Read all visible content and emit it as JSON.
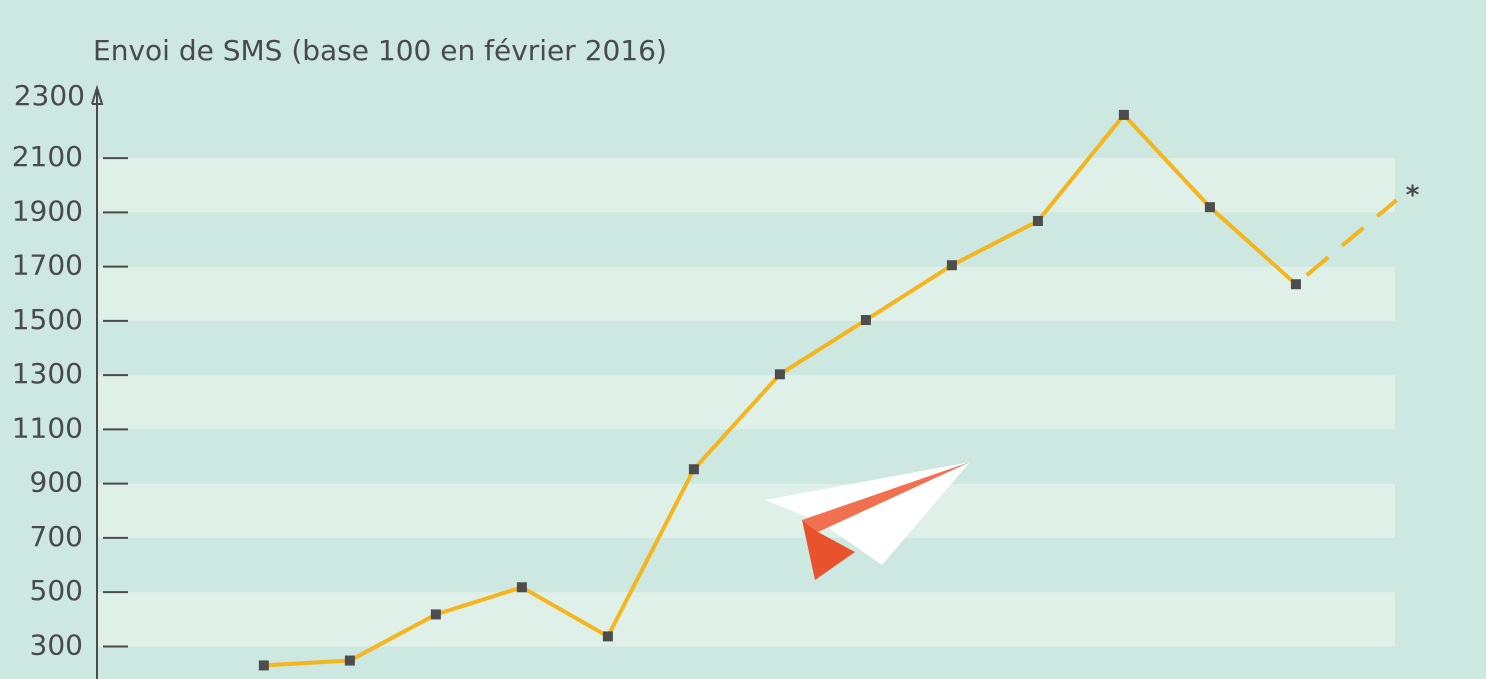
{
  "chart_data": {
    "type": "line",
    "title": "Envoi de SMS (base 100 en février 2016)",
    "x": [
      1,
      2,
      3,
      4,
      5,
      6,
      7,
      8,
      9,
      10,
      11,
      12,
      13,
      14.17
    ],
    "categories": [
      null,
      null,
      null,
      null,
      null,
      null,
      null,
      null,
      null,
      null,
      null,
      null,
      null,
      null
    ],
    "series": [
      {
        "color": "#f5b51e",
        "marker_color": "#4d4d4d",
        "line_style": "solid",
        "values": [
          230,
          248,
          418,
          518,
          337,
          953,
          1303,
          1503,
          1705,
          1868,
          2259,
          1919,
          1635,
          null
        ]
      },
      {
        "color": "#f5b51e",
        "line_style": "dashed",
        "values": [
          null,
          null,
          null,
          null,
          null,
          null,
          null,
          null,
          null,
          null,
          null,
          null,
          1635,
          1945
        ]
      }
    ],
    "annotation": "*",
    "xlim": [
      -0.94,
      15.21
    ],
    "ylim": [
      180,
      2300
    ],
    "yticks": [
      300,
      500,
      700,
      900,
      1100,
      1300,
      1500,
      1700,
      1900,
      2100,
      2300
    ],
    "grid": true
  }
}
